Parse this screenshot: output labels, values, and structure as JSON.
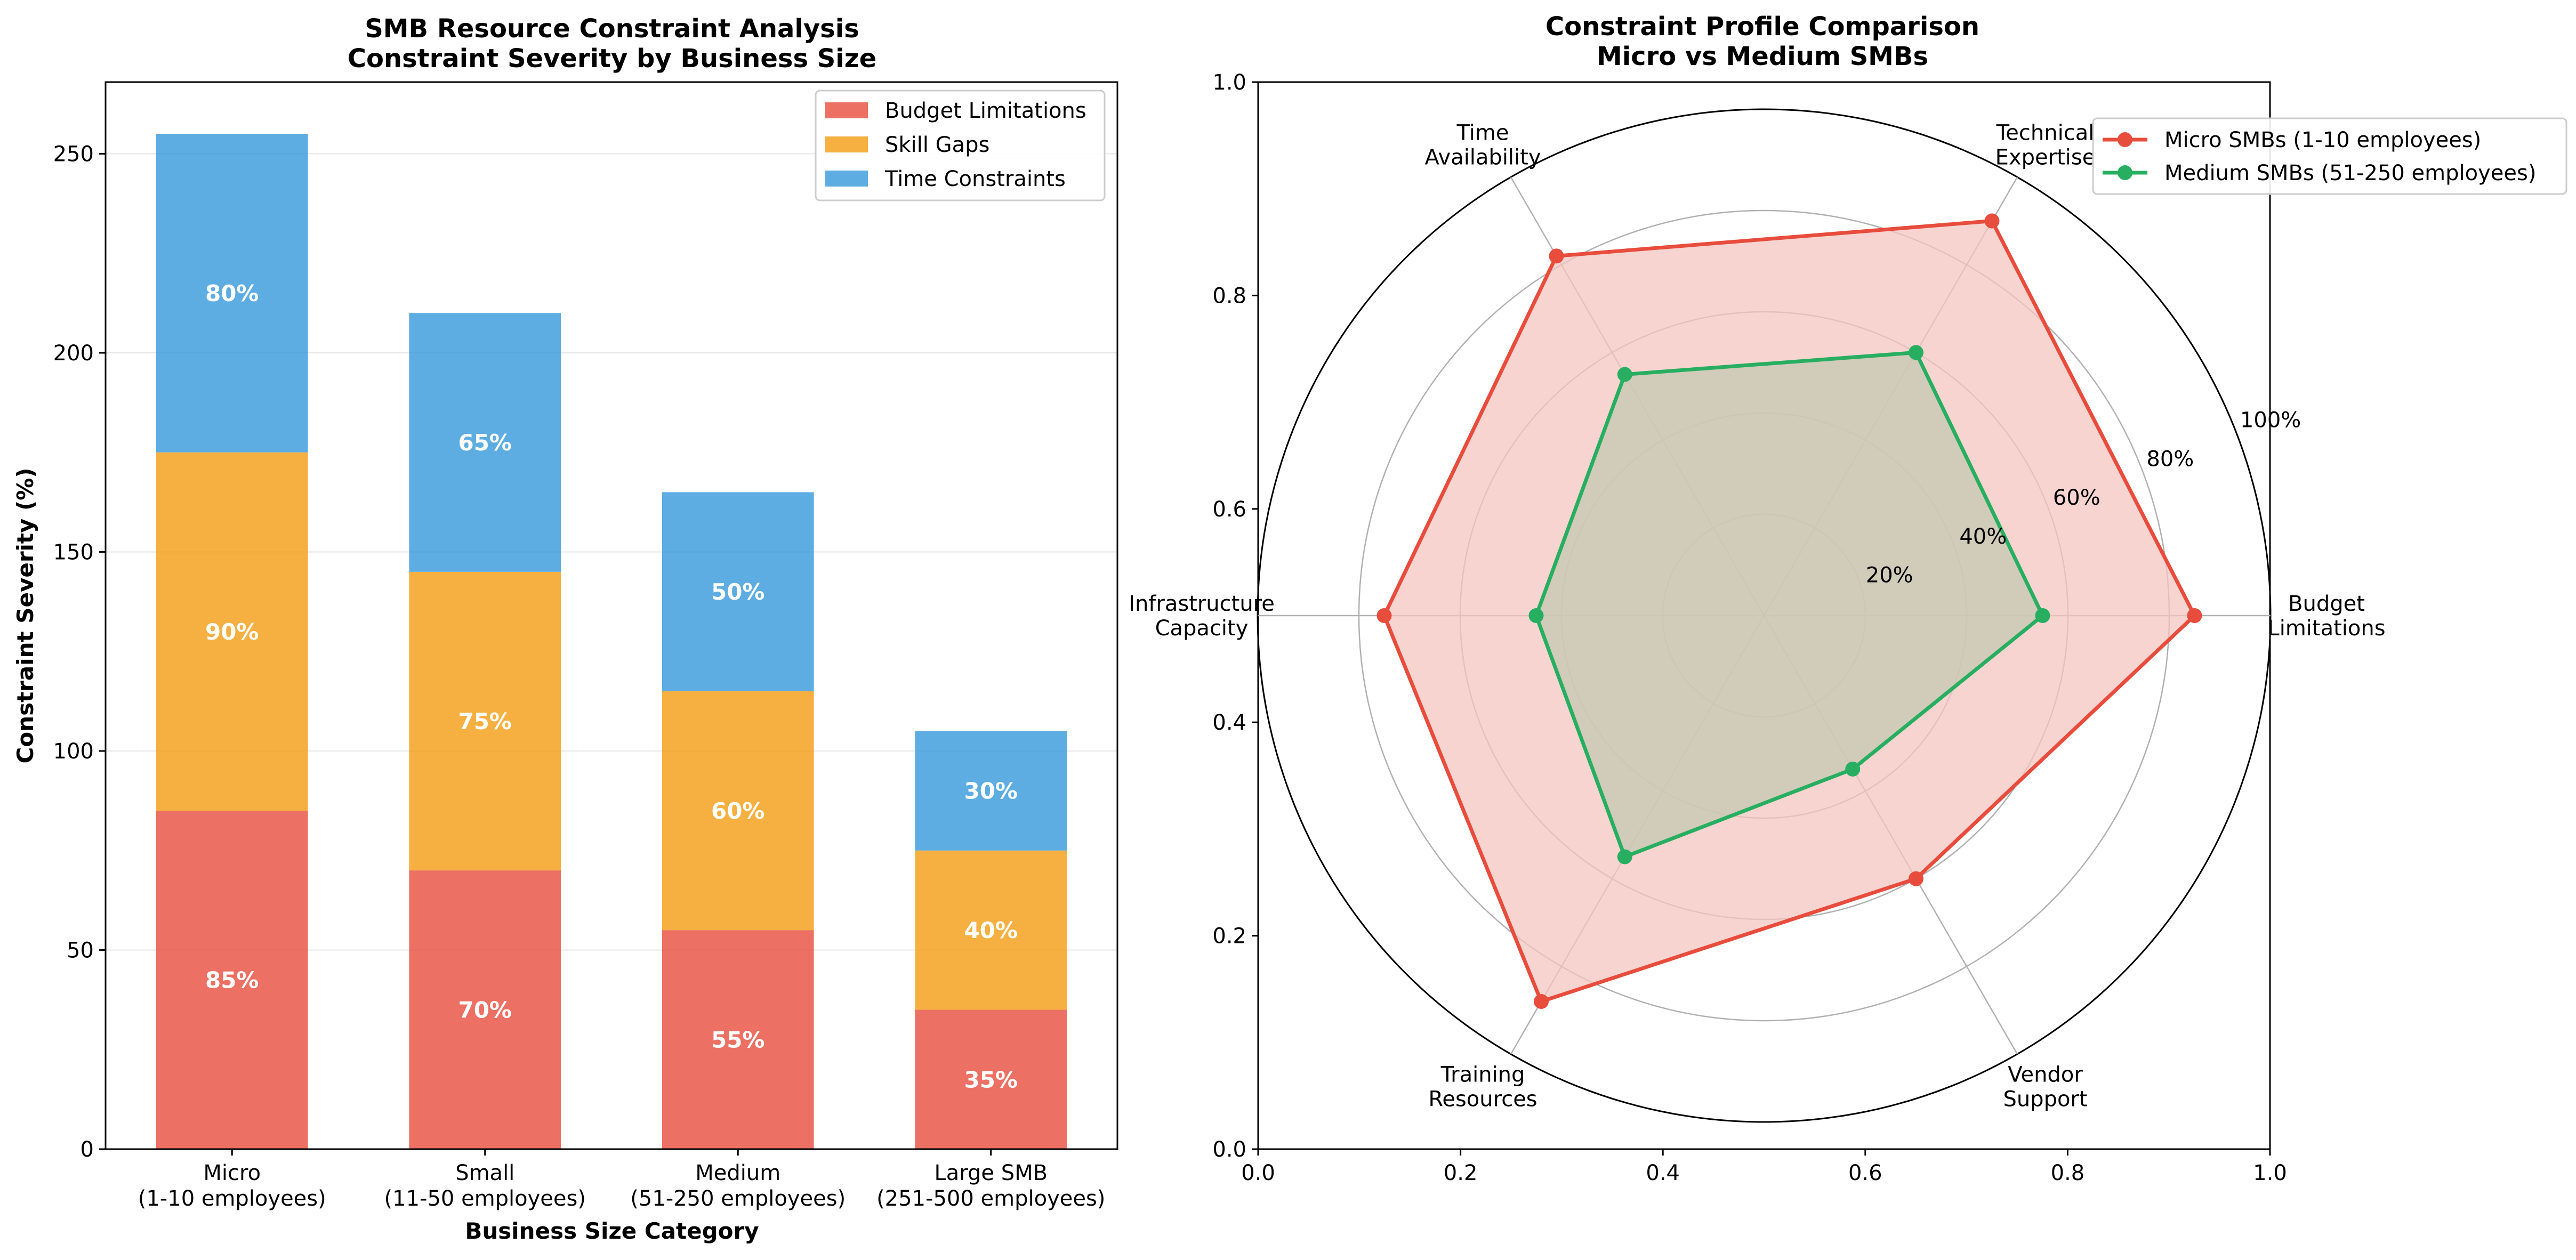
{
  "chart_data": [
    {
      "type": "bar",
      "stacked": true,
      "title": "SMB Resource Constraint Analysis",
      "subtitle": "Constraint Severity by Business Size",
      "xlabel": "Business Size Category",
      "ylabel": "Constraint Severity (%)",
      "categories": [
        [
          "Micro",
          "(1-10 employees)"
        ],
        [
          "Small",
          "(11-50 employees)"
        ],
        [
          "Medium",
          "(51-250 employees)"
        ],
        [
          "Large SMB",
          "(251-500 employees)"
        ]
      ],
      "ylim": [
        0,
        268
      ],
      "yticks": [
        0,
        50,
        100,
        150,
        200,
        250
      ],
      "grid": "horizontal",
      "legend_position": "top-right",
      "series": [
        {
          "name": "Budget Limitations",
          "color": "#e74c3c",
          "values": [
            85,
            70,
            55,
            35
          ],
          "labels": [
            "85%",
            "70%",
            "55%",
            "35%"
          ]
        },
        {
          "name": "Skill Gaps",
          "color": "#f39c12",
          "values": [
            90,
            75,
            60,
            40
          ],
          "labels": [
            "90%",
            "75%",
            "60%",
            "40%"
          ]
        },
        {
          "name": "Time Constraints",
          "color": "#3498db",
          "values": [
            80,
            65,
            50,
            30
          ],
          "labels": [
            "80%",
            "65%",
            "50%",
            "30%"
          ]
        }
      ]
    },
    {
      "type": "radar",
      "title": "Constraint Profile Comparison",
      "subtitle": "Micro vs Medium SMBs",
      "axes": [
        [
          "Budget",
          "Limitations"
        ],
        [
          "Technical",
          "Expertise"
        ],
        [
          "Time",
          "Availability"
        ],
        [
          "Infrastructure",
          "Capacity"
        ],
        [
          "Training",
          "Resources"
        ],
        [
          "Vendor",
          "Support"
        ]
      ],
      "rlim": [
        0,
        100
      ],
      "rticks": [
        20,
        40,
        60,
        80,
        100
      ],
      "rtick_labels": [
        "20%",
        "40%",
        "60%",
        "80%",
        "100%"
      ],
      "frame_ticks": [
        "0.0",
        "0.2",
        "0.4",
        "0.6",
        "0.8",
        "1.0"
      ],
      "legend_position": "top-right",
      "series": [
        {
          "name": "Micro SMBs (1-10 employees)",
          "color": "#e74c3c",
          "fill": "#f5c6c2",
          "values": [
            85,
            90,
            82,
            75,
            88,
            60
          ]
        },
        {
          "name": "Medium SMBs (51-250 employees)",
          "color": "#27ae60",
          "fill": "#c4c8b2",
          "values": [
            55,
            60,
            55,
            45,
            55,
            35
          ]
        }
      ]
    }
  ]
}
